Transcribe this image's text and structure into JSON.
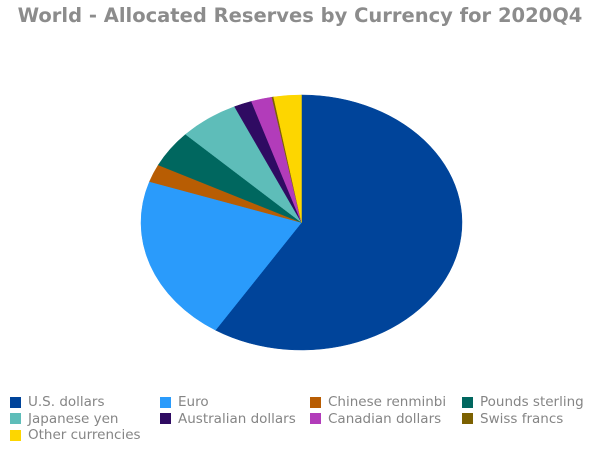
{
  "chart_data": {
    "type": "pie",
    "title": "World - Allocated Reserves by Currency for 2020Q4",
    "start_angle_deg": 0,
    "direction": "clockwise",
    "legend_position": "bottom",
    "slices": [
      {
        "label": "U.S. dollars",
        "value": 59.0,
        "color": "#00449A"
      },
      {
        "label": "Euro",
        "value": 21.2,
        "color": "#2A9BFB"
      },
      {
        "label": "Chinese renminbi",
        "value": 2.25,
        "color": "#B85D03"
      },
      {
        "label": "Pounds sterling",
        "value": 4.7,
        "color": "#00675F"
      },
      {
        "label": "Japanese yen",
        "value": 6.0,
        "color": "#5EBDB9"
      },
      {
        "label": "Australian dollars",
        "value": 1.8,
        "color": "#2F0B62"
      },
      {
        "label": "Canadian dollars",
        "value": 2.1,
        "color": "#B23CBA"
      },
      {
        "label": "Swiss francs",
        "value": 0.17,
        "color": "#7C6101"
      },
      {
        "label": "Other currencies",
        "value": 2.78,
        "color": "#FDD600"
      }
    ]
  },
  "legend": {
    "items": [
      {
        "label": "U.S. dollars",
        "color": "#00449A"
      },
      {
        "label": "Euro",
        "color": "#2A9BFB"
      },
      {
        "label": "Chinese renminbi",
        "color": "#B85D03"
      },
      {
        "label": "Pounds sterling",
        "color": "#00675F"
      },
      {
        "label": "Japanese yen",
        "color": "#5EBDB9"
      },
      {
        "label": "Australian dollars",
        "color": "#2F0B62"
      },
      {
        "label": "Canadian dollars",
        "color": "#B23CBA"
      },
      {
        "label": "Swiss francs",
        "color": "#7C6101"
      },
      {
        "label": "Other currencies",
        "color": "#FDD600"
      }
    ]
  }
}
